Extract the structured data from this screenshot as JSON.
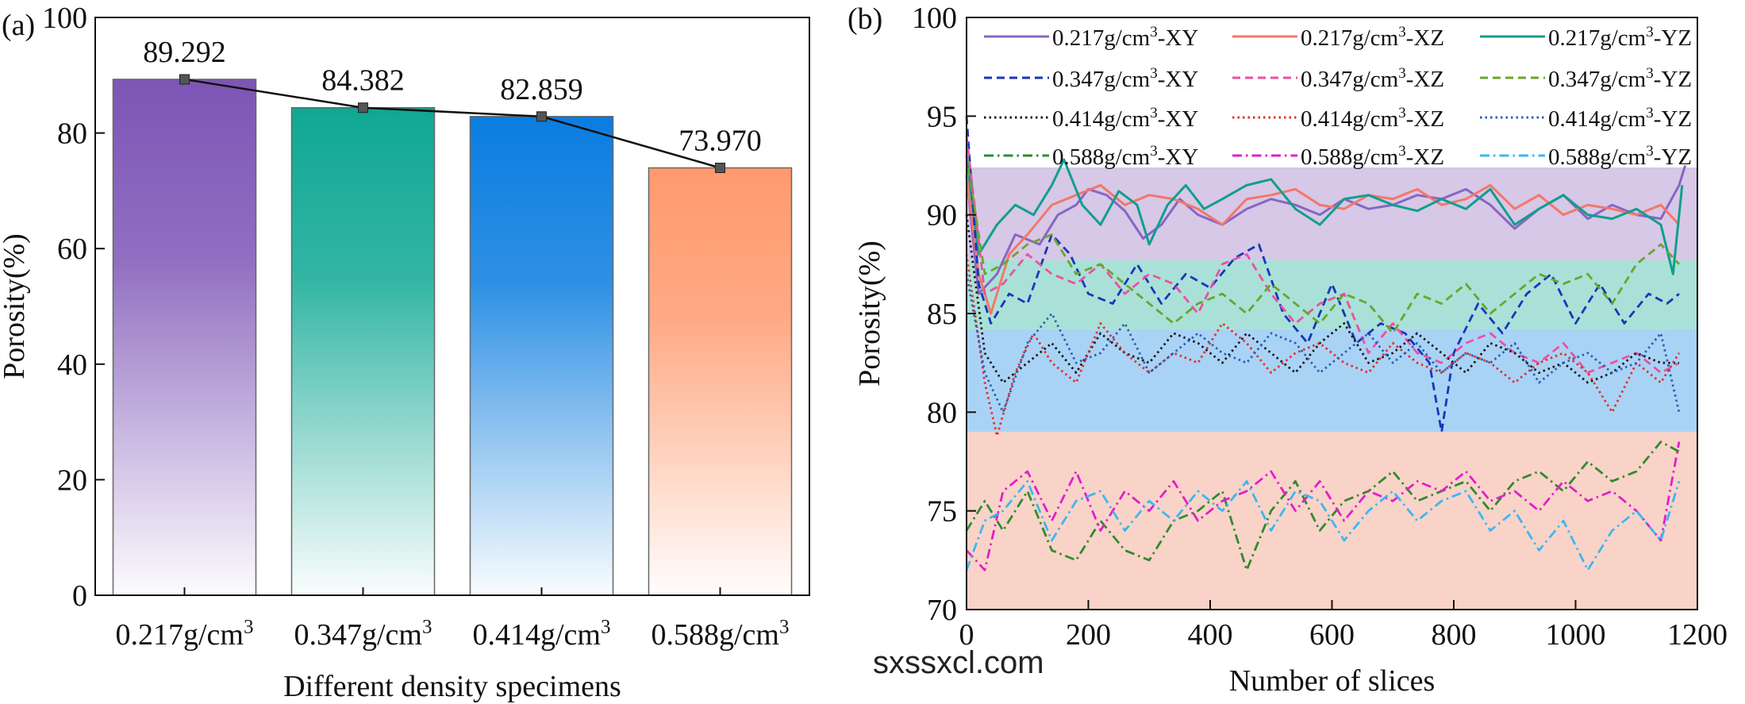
{
  "chart_data": [
    {
      "panel": "(a)",
      "type": "bar",
      "title": "",
      "xlabel": "Different density specimens",
      "ylabel": "Porosity(%)",
      "ylim": [
        0,
        100
      ],
      "yticks": [
        0,
        20,
        40,
        60,
        80,
        100
      ],
      "categories": [
        "0.217g/cm3",
        "0.347g/cm3",
        "0.414g/cm3",
        "0.588g/cm3"
      ],
      "values": [
        89.292,
        84.382,
        82.859,
        73.97
      ],
      "value_labels": [
        "89.292",
        "84.382",
        "82.859",
        "73.970"
      ],
      "bar_colors": [
        "#7d55b6",
        "#0fa894",
        "#0a7de0",
        "#ff9a6e"
      ],
      "trend_line": true,
      "grid": false
    },
    {
      "panel": "(b)",
      "type": "line",
      "title": "",
      "xlabel": "Number of slices",
      "ylabel": "Porosity(%)",
      "xlim": [
        0,
        1200
      ],
      "ylim": [
        70,
        100
      ],
      "xticks": [
        0,
        200,
        400,
        600,
        800,
        1000,
        1200
      ],
      "yticks": [
        70,
        75,
        80,
        85,
        90,
        95,
        100
      ],
      "legend_position": "top",
      "grid": false,
      "bands": [
        {
          "y0": 79,
          "y1": 70,
          "color": "#f9d3c8"
        },
        {
          "y0": 84.2,
          "y1": 79,
          "color": "#a9d3f5"
        },
        {
          "y0": 87.7,
          "y1": 84.2,
          "color": "#a9e1d8"
        },
        {
          "y0": 92.4,
          "y1": 87.7,
          "color": "#d6c8e6"
        }
      ],
      "series": [
        {
          "name": "0.217g/cm3-XY",
          "color": "#8a64c4",
          "style": "solid",
          "x": [
            0,
            20,
            50,
            80,
            120,
            150,
            180,
            200,
            230,
            260,
            290,
            320,
            350,
            380,
            420,
            460,
            500,
            540,
            580,
            620,
            660,
            700,
            740,
            780,
            820,
            860,
            900,
            940,
            980,
            1020,
            1060,
            1100,
            1140,
            1170,
            1180
          ],
          "y": [
            92,
            86,
            87,
            89,
            88.5,
            90,
            90.5,
            91.3,
            91,
            90.2,
            88.8,
            89.5,
            90.8,
            90,
            89.5,
            90.3,
            90.8,
            90.5,
            90,
            90.8,
            90.3,
            90.5,
            91,
            90.8,
            91.3,
            90.5,
            89.3,
            90.3,
            91,
            89.8,
            90.5,
            90,
            89.8,
            91.5,
            92.5
          ]
        },
        {
          "name": "0.217g/cm3-XZ",
          "color": "#f4766b",
          "style": "solid",
          "x": [
            0,
            20,
            40,
            70,
            100,
            140,
            180,
            220,
            260,
            300,
            340,
            380,
            420,
            460,
            500,
            540,
            580,
            620,
            660,
            700,
            740,
            780,
            820,
            860,
            900,
            940,
            980,
            1020,
            1060,
            1100,
            1140,
            1170
          ],
          "y": [
            92,
            87,
            85,
            88,
            89,
            90.5,
            91,
            91.5,
            90.5,
            91,
            90.8,
            90.3,
            89.5,
            90.8,
            91,
            91.3,
            90.5,
            90.3,
            91,
            90.8,
            91.3,
            90.5,
            90.8,
            91.5,
            90.3,
            91,
            90,
            90.5,
            90.3,
            90,
            90.5,
            89.5
          ]
        },
        {
          "name": "0.217g/cm3-YZ",
          "color": "#119e8c",
          "style": "solid",
          "x": [
            0,
            20,
            50,
            80,
            110,
            140,
            160,
            190,
            220,
            250,
            280,
            300,
            330,
            360,
            390,
            420,
            460,
            500,
            540,
            580,
            620,
            660,
            700,
            740,
            780,
            820,
            860,
            900,
            940,
            980,
            1020,
            1060,
            1100,
            1140,
            1160,
            1175
          ],
          "y": [
            93,
            88,
            89.5,
            90.5,
            90,
            91.5,
            92.8,
            90.5,
            89.5,
            91.2,
            90.5,
            88.5,
            90.5,
            91.5,
            90.3,
            90.8,
            91.5,
            91.8,
            90.3,
            89.5,
            90.8,
            91,
            90.5,
            90.2,
            90.8,
            90.3,
            91.3,
            89.5,
            90.3,
            91,
            90,
            89.8,
            90.3,
            89.5,
            87,
            91.5
          ]
        },
        {
          "name": "0.347g/cm3-XY",
          "color": "#1836b8",
          "style": "dashed",
          "x": [
            0,
            20,
            40,
            70,
            100,
            140,
            170,
            200,
            240,
            280,
            320,
            360,
            400,
            440,
            480,
            520,
            560,
            600,
            640,
            680,
            720,
            760,
            780,
            800,
            840,
            880,
            920,
            960,
            1000,
            1040,
            1080,
            1120,
            1150,
            1170
          ],
          "y": [
            95,
            86.5,
            84.5,
            86,
            85.5,
            89,
            88,
            86,
            85.5,
            87.5,
            85.5,
            87,
            86.3,
            87.8,
            88.5,
            85,
            83.5,
            86.5,
            83.5,
            84.5,
            84,
            82.5,
            79,
            83,
            85.5,
            84,
            86,
            87,
            84.5,
            86.5,
            84.5,
            86,
            85.5,
            86
          ]
        },
        {
          "name": "0.347g/cm3-XZ",
          "color": "#ee4fa0",
          "style": "dashed",
          "x": [
            0,
            30,
            60,
            100,
            140,
            180,
            220,
            260,
            300,
            340,
            380,
            420,
            460,
            500,
            540,
            580,
            620,
            660,
            700,
            740,
            780,
            820,
            860,
            900,
            940,
            980,
            1020,
            1060,
            1100,
            1140,
            1170
          ],
          "y": [
            94,
            86,
            86.5,
            88,
            87,
            86.5,
            87.5,
            86,
            87,
            86.5,
            85,
            87.5,
            88,
            86,
            84.5,
            85.5,
            86,
            83,
            84.5,
            83,
            82.5,
            83.5,
            84,
            83,
            82.5,
            83.5,
            82,
            82.5,
            83,
            82,
            82.5
          ]
        },
        {
          "name": "0.347g/cm3-YZ",
          "color": "#6aa52b",
          "style": "dashed",
          "x": [
            0,
            30,
            60,
            100,
            140,
            180,
            220,
            260,
            300,
            340,
            380,
            420,
            460,
            500,
            540,
            580,
            620,
            660,
            700,
            740,
            780,
            820,
            860,
            900,
            940,
            980,
            1020,
            1060,
            1100,
            1140,
            1170
          ],
          "y": [
            93,
            87,
            87.5,
            88.5,
            89,
            87,
            87.5,
            86.5,
            85.5,
            84.5,
            85.5,
            86,
            85,
            86.5,
            85.5,
            84.5,
            86,
            85.5,
            84,
            86,
            85.5,
            86.5,
            85,
            86,
            87,
            86.5,
            87,
            85.5,
            87.5,
            88.5,
            87.5
          ]
        },
        {
          "name": "0.414g/cm3-XY",
          "color": "#1a1a1a",
          "style": "dotted",
          "x": [
            0,
            30,
            60,
            100,
            140,
            180,
            220,
            260,
            300,
            340,
            380,
            420,
            460,
            500,
            540,
            580,
            620,
            660,
            700,
            740,
            780,
            820,
            860,
            900,
            940,
            980,
            1020,
            1060,
            1100,
            1140,
            1170
          ],
          "y": [
            90,
            83,
            81.5,
            82.5,
            83.5,
            82,
            84,
            83,
            82.5,
            84,
            83.5,
            82.5,
            84,
            83,
            82,
            83.5,
            84.5,
            82.5,
            83,
            84,
            83,
            82,
            83.5,
            83,
            82,
            82.5,
            81.5,
            82,
            83,
            82.5,
            82.5
          ]
        },
        {
          "name": "0.414g/cm3-XZ",
          "color": "#e0302a",
          "style": "dotted",
          "x": [
            0,
            30,
            50,
            80,
            110,
            140,
            180,
            220,
            260,
            300,
            340,
            380,
            420,
            460,
            500,
            540,
            580,
            620,
            660,
            700,
            740,
            780,
            820,
            860,
            900,
            940,
            980,
            1020,
            1060,
            1100,
            1140,
            1170
          ],
          "y": [
            88,
            81.5,
            78.8,
            82,
            84,
            82.5,
            81.5,
            84.5,
            83,
            82,
            83,
            82.5,
            84.5,
            83.5,
            82,
            83,
            83.5,
            82.5,
            82,
            83.5,
            82.5,
            82,
            83,
            82.5,
            81.5,
            82.5,
            83,
            82,
            80,
            82.5,
            81.5,
            83
          ]
        },
        {
          "name": "0.414g/cm3-YZ",
          "color": "#2c5fb0",
          "style": "dotted",
          "x": [
            0,
            30,
            60,
            100,
            140,
            180,
            220,
            260,
            300,
            340,
            380,
            420,
            460,
            500,
            540,
            580,
            620,
            660,
            700,
            740,
            780,
            820,
            860,
            900,
            940,
            980,
            1020,
            1060,
            1100,
            1140,
            1170
          ],
          "y": [
            87,
            82,
            80,
            83.5,
            85,
            82.5,
            83,
            84.5,
            82,
            83,
            84,
            83,
            82.5,
            84,
            83.5,
            82,
            83,
            84,
            82.5,
            83.5,
            82,
            83,
            82.5,
            83.5,
            81.5,
            82.5,
            83,
            82,
            82.5,
            84,
            80
          ]
        },
        {
          "name": "0.588g/cm3-XY",
          "color": "#2e8b2e",
          "style": "dashdot",
          "x": [
            0,
            30,
            60,
            100,
            140,
            180,
            220,
            260,
            300,
            340,
            380,
            420,
            460,
            500,
            540,
            580,
            620,
            660,
            700,
            740,
            780,
            820,
            860,
            900,
            940,
            980,
            1020,
            1060,
            1100,
            1140,
            1170
          ],
          "y": [
            74,
            75.5,
            74,
            76,
            73,
            72.5,
            74.5,
            73,
            72.5,
            74.5,
            75,
            76,
            72,
            75,
            76.5,
            74,
            75.5,
            76,
            77,
            75.5,
            76,
            76.5,
            75,
            76.5,
            77,
            76,
            77.5,
            76.5,
            77,
            78.5,
            78
          ]
        },
        {
          "name": "0.588g/cm3-XZ",
          "color": "#e020c8",
          "style": "dashdot",
          "x": [
            0,
            30,
            60,
            100,
            140,
            180,
            220,
            260,
            300,
            340,
            380,
            420,
            460,
            500,
            540,
            580,
            620,
            660,
            700,
            740,
            780,
            820,
            860,
            900,
            940,
            980,
            1020,
            1060,
            1100,
            1140,
            1170
          ],
          "y": [
            73,
            72,
            76,
            77,
            74.5,
            77,
            74,
            76,
            75,
            76.5,
            74.5,
            75.5,
            76,
            77,
            75,
            76.5,
            74.5,
            76,
            75.5,
            76.5,
            76,
            77,
            75.5,
            76,
            75,
            76.5,
            75.5,
            76,
            75,
            73.5,
            78.5
          ]
        },
        {
          "name": "0.588g/cm3-YZ",
          "color": "#3cb7f0",
          "style": "dashdot",
          "x": [
            0,
            30,
            60,
            100,
            140,
            180,
            220,
            260,
            300,
            340,
            380,
            420,
            460,
            500,
            540,
            580,
            620,
            660,
            700,
            740,
            780,
            820,
            860,
            900,
            940,
            980,
            1020,
            1060,
            1100,
            1140,
            1170
          ],
          "y": [
            72,
            74.5,
            75,
            76.5,
            73.5,
            75.5,
            76,
            74,
            75.5,
            74.5,
            76,
            75,
            76.5,
            74,
            76,
            75.5,
            73.5,
            75,
            76,
            74.5,
            75.5,
            76,
            74,
            75,
            73,
            74.5,
            72,
            74,
            75,
            73.5,
            76.5
          ]
        }
      ]
    }
  ],
  "watermark": "sxssxcl.com"
}
